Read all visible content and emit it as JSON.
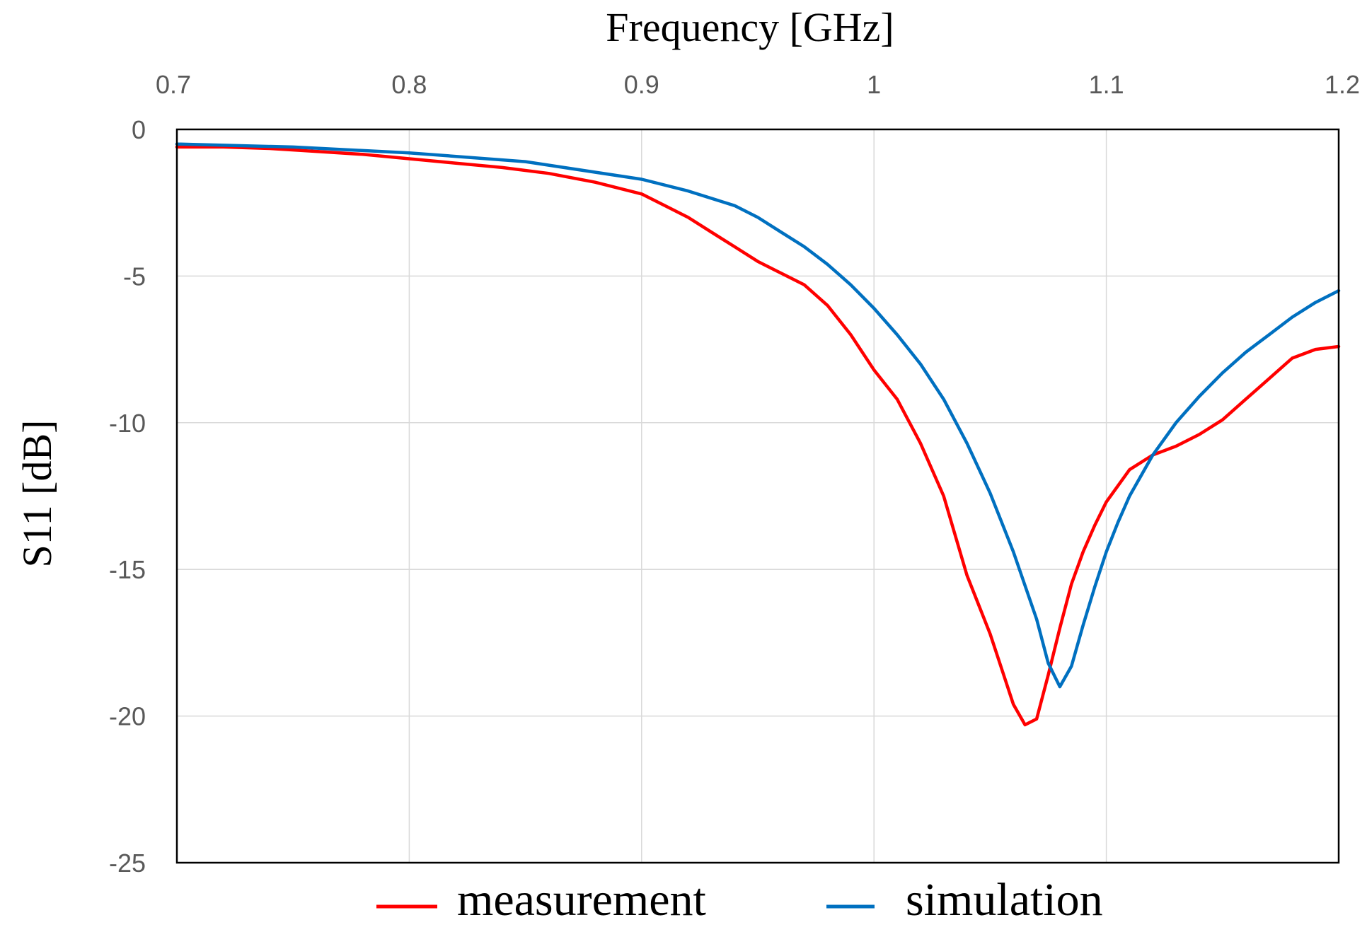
{
  "chart_data": {
    "type": "line",
    "title": "",
    "xlabel": "Frequency  [GHz]",
    "ylabel": "S11 [dB]",
    "xlim": [
      0.7,
      1.2
    ],
    "ylim": [
      -25,
      0
    ],
    "x_ticks": [
      0.7,
      0.8,
      0.9,
      1.0,
      1.1,
      1.2
    ],
    "x_tick_labels": [
      "0.7",
      "0.8",
      "0.9",
      "1",
      "1.1",
      "1.2"
    ],
    "y_ticks": [
      0,
      -5,
      -10,
      -15,
      -20,
      -25
    ],
    "y_tick_labels": [
      "0",
      "-5",
      "-10",
      "-15",
      "-20",
      "-25"
    ],
    "x_axis_position": "top",
    "grid": true,
    "legend_position": "bottom",
    "series": [
      {
        "name": "measurement",
        "color": "#ff0000",
        "x": [
          0.7,
          0.72,
          0.74,
          0.76,
          0.78,
          0.8,
          0.82,
          0.84,
          0.86,
          0.88,
          0.9,
          0.91,
          0.92,
          0.93,
          0.94,
          0.95,
          0.96,
          0.97,
          0.98,
          0.99,
          1.0,
          1.01,
          1.02,
          1.03,
          1.04,
          1.045,
          1.05,
          1.055,
          1.06,
          1.065,
          1.07,
          1.075,
          1.08,
          1.085,
          1.09,
          1.095,
          1.1,
          1.11,
          1.12,
          1.13,
          1.14,
          1.15,
          1.16,
          1.17,
          1.18,
          1.19,
          1.2
        ],
        "y": [
          -0.6,
          -0.6,
          -0.65,
          -0.75,
          -0.85,
          -1.0,
          -1.15,
          -1.3,
          -1.5,
          -1.8,
          -2.2,
          -2.6,
          -3.0,
          -3.5,
          -4.0,
          -4.5,
          -4.9,
          -5.3,
          -6.0,
          -7.0,
          -8.2,
          -9.2,
          -10.7,
          -12.5,
          -15.2,
          -16.2,
          -17.2,
          -18.4,
          -19.6,
          -20.3,
          -20.1,
          -18.6,
          -17.0,
          -15.5,
          -14.4,
          -13.5,
          -12.7,
          -11.6,
          -11.1,
          -10.8,
          -10.4,
          -9.9,
          -9.2,
          -8.5,
          -7.8,
          -7.5,
          -7.4
        ]
      },
      {
        "name": "simulation",
        "color": "#0070c0",
        "x": [
          0.7,
          0.75,
          0.8,
          0.85,
          0.9,
          0.92,
          0.94,
          0.95,
          0.96,
          0.97,
          0.98,
          0.99,
          1.0,
          1.01,
          1.02,
          1.03,
          1.04,
          1.05,
          1.06,
          1.07,
          1.075,
          1.08,
          1.085,
          1.09,
          1.095,
          1.1,
          1.105,
          1.11,
          1.12,
          1.13,
          1.14,
          1.15,
          1.16,
          1.17,
          1.18,
          1.19,
          1.2
        ],
        "y": [
          -0.5,
          -0.6,
          -0.8,
          -1.1,
          -1.7,
          -2.1,
          -2.6,
          -3.0,
          -3.5,
          -4.0,
          -4.6,
          -5.3,
          -6.1,
          -7.0,
          -8.0,
          -9.2,
          -10.7,
          -12.4,
          -14.4,
          -16.7,
          -18.2,
          -19.0,
          -18.3,
          -16.9,
          -15.6,
          -14.4,
          -13.4,
          -12.5,
          -11.1,
          -10.0,
          -9.1,
          -8.3,
          -7.6,
          -7.0,
          -6.4,
          -5.9,
          -5.5
        ]
      }
    ]
  }
}
